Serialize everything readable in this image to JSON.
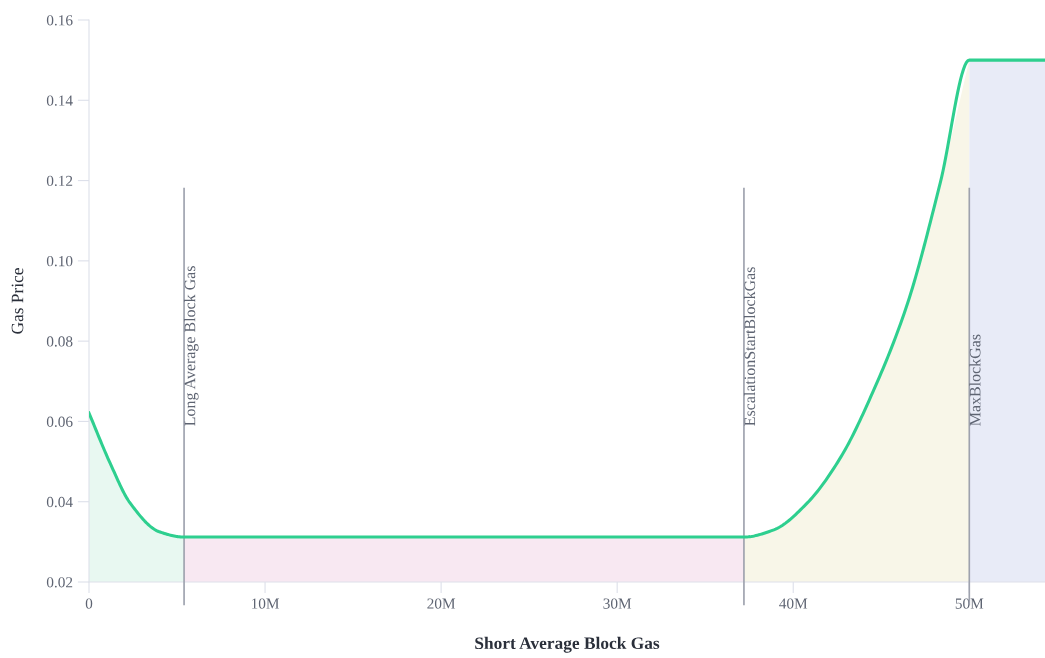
{
  "chart_data": {
    "type": "line",
    "xlabel": "Short Average Block Gas",
    "ylabel": "Gas Price",
    "xlim": [
      0,
      54300000
    ],
    "ylim": [
      0.02,
      0.16
    ],
    "xticks": [
      0,
      {
        "value": 10000000,
        "label": "10M"
      },
      {
        "value": 20000000,
        "label": "20M"
      },
      {
        "value": 30000000,
        "label": "30M"
      },
      {
        "value": 40000000,
        "label": "40M"
      },
      {
        "value": 50000000,
        "label": "50M"
      }
    ],
    "yticks": [
      {
        "value": 0.02,
        "label": "0.02"
      },
      {
        "value": 0.04,
        "label": "0.04"
      },
      {
        "value": 0.06,
        "label": "0.06"
      },
      {
        "value": 0.08,
        "label": "0.08"
      },
      {
        "value": 0.1,
        "label": "0.10"
      },
      {
        "value": 0.12,
        "label": "0.12"
      },
      {
        "value": 0.14,
        "label": "0.14"
      },
      {
        "value": 0.16,
        "label": "0.16"
      }
    ],
    "grid": false,
    "marker": "none",
    "line_style": "solid",
    "series": [
      {
        "type": "area",
        "color": "#e8f8f1",
        "x": [
          0,
          1200000,
          2330000,
          4000000,
          5400000
        ],
        "values": [
          0.0621,
          0.0496,
          0.0397,
          0.0325,
          0.0312
        ]
      },
      {
        "type": "area",
        "color": "#f8e8f2",
        "x": [
          5400000,
          37200000
        ],
        "values": [
          0.0312,
          0.0312
        ]
      },
      {
        "type": "area",
        "color": "#f8f6e8",
        "x": [
          37200000,
          38900000,
          40800000,
          42700000,
          44500000,
          46500000,
          48350000,
          50000000
        ],
        "values": [
          0.0312,
          0.033,
          0.0397,
          0.0511,
          0.0671,
          0.0895,
          0.1194,
          0.15
        ]
      },
      {
        "type": "area",
        "color": "#e8ebf7",
        "x": [
          50000000,
          54300000
        ],
        "values": [
          0.15,
          0.15
        ]
      },
      {
        "color": "#2ecf8f",
        "x": [
          0,
          1200000,
          2330000,
          4000000,
          5400000,
          37200000,
          38900000,
          40800000,
          42700000,
          44500000,
          46500000,
          48350000,
          50000000,
          54300000
        ],
        "values": [
          0.0621,
          0.0496,
          0.0397,
          0.0325,
          0.0312,
          0.0312,
          0.033,
          0.0397,
          0.0511,
          0.0671,
          0.0895,
          0.1194,
          0.15,
          0.15
        ]
      }
    ],
    "ref_lines": [
      {
        "axis": "x",
        "value": 5400000,
        "label": "Long Average Block Gas",
        "color": "#9ea2ae"
      },
      {
        "axis": "x",
        "value": 37200000,
        "label": "EscalationStartBlockGas",
        "color": "#9ea2ae"
      },
      {
        "axis": "x",
        "value": 50000000,
        "label": "MaxBlockGas",
        "color": "#9ea2ae"
      }
    ]
  }
}
